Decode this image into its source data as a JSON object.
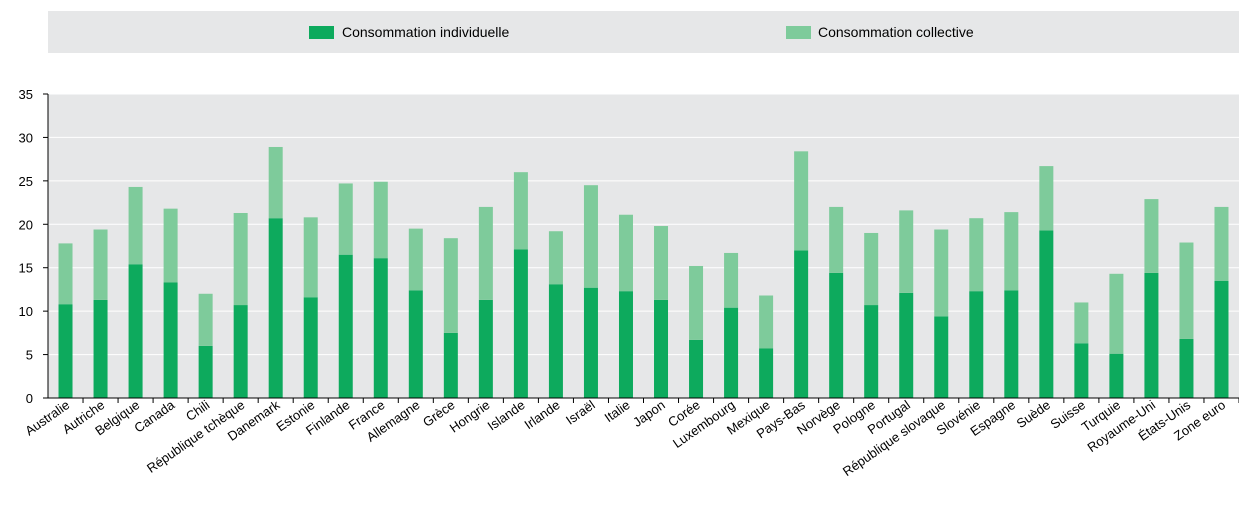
{
  "chart_data": {
    "type": "bar",
    "stacked": true,
    "categories": [
      "Australie",
      "Autriche",
      "Belgique",
      "Canada",
      "Chili",
      "République tchèque",
      "Danemark",
      "Estonie",
      "Finlande",
      "France",
      "Allemagne",
      "Grèce",
      "Hongrie",
      "Islande",
      "Irlande",
      "Israël",
      "Italie",
      "Japon",
      "Corée",
      "Luxembourg",
      "Mexique",
      "Pays-Bas",
      "Norvège",
      "Pologne",
      "Portugal",
      "République slovaque",
      "Slovénie",
      "Espagne",
      "Suède",
      "Suisse",
      "Turquie",
      "Royaume-Uni",
      "États-Unis",
      "Zone euro"
    ],
    "series": [
      {
        "name": "Consommation individuelle",
        "color": "#0daa5d",
        "values": [
          10.8,
          11.3,
          15.4,
          13.3,
          6.0,
          10.7,
          20.7,
          11.6,
          16.5,
          16.1,
          12.4,
          7.5,
          11.3,
          17.1,
          13.1,
          12.7,
          12.3,
          11.3,
          6.7,
          10.4,
          5.7,
          17.0,
          14.4,
          10.7,
          12.1,
          9.4,
          12.3,
          12.4,
          19.3,
          6.3,
          5.1,
          14.4,
          6.8,
          13.5
        ]
      },
      {
        "name": "Consommation collective",
        "color": "#7ecb9b",
        "values": [
          7.0,
          8.1,
          8.9,
          8.5,
          6.0,
          10.6,
          8.2,
          9.2,
          8.2,
          8.8,
          7.1,
          10.9,
          10.7,
          8.9,
          6.1,
          11.8,
          8.8,
          8.5,
          8.5,
          6.3,
          6.1,
          11.4,
          7.6,
          8.3,
          9.5,
          10.0,
          8.4,
          9.0,
          7.4,
          4.7,
          9.2,
          8.5,
          11.1,
          8.5
        ]
      }
    ],
    "ylim": [
      0,
      35
    ],
    "yticks": [
      "0",
      "5",
      "10",
      "15",
      "20",
      "25",
      "30",
      "35"
    ],
    "xlabel": "",
    "ylabel": "",
    "title": "",
    "legend_position": "top",
    "grid": true
  }
}
